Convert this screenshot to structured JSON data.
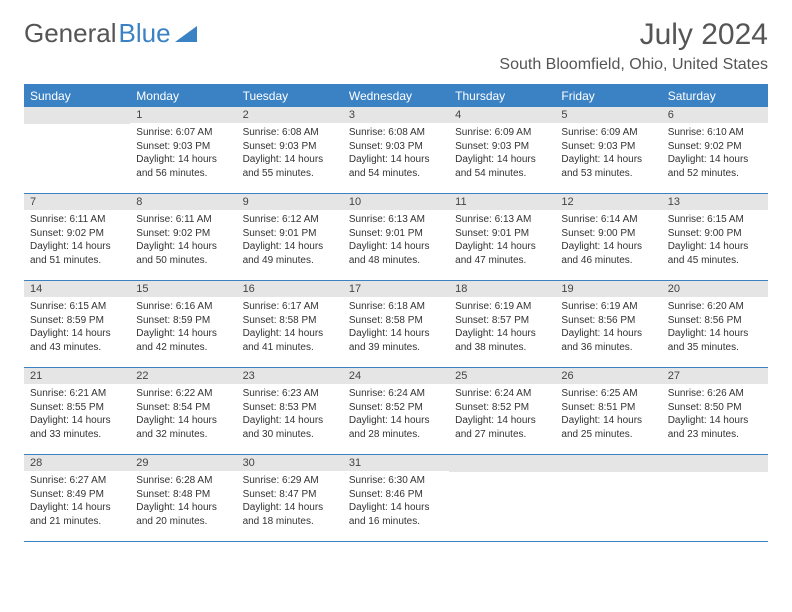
{
  "brand": {
    "part1": "General",
    "part2": "Blue"
  },
  "header": {
    "title": "July 2024",
    "location": "South Bloomfield, Ohio, United States"
  },
  "colors": {
    "accent": "#3b82c4",
    "header_bg": "#3b82c4",
    "header_text": "#ffffff",
    "daynum_bg": "#e5e5e5",
    "text": "#333333",
    "title_text": "#555555"
  },
  "dayNames": [
    "Sunday",
    "Monday",
    "Tuesday",
    "Wednesday",
    "Thursday",
    "Friday",
    "Saturday"
  ],
  "calendar": {
    "type": "table",
    "columns": 7,
    "first_weekday_offset": 1,
    "days": [
      {
        "n": 1,
        "sunrise": "6:07 AM",
        "sunset": "9:03 PM",
        "daylight": "14 hours and 56 minutes."
      },
      {
        "n": 2,
        "sunrise": "6:08 AM",
        "sunset": "9:03 PM",
        "daylight": "14 hours and 55 minutes."
      },
      {
        "n": 3,
        "sunrise": "6:08 AM",
        "sunset": "9:03 PM",
        "daylight": "14 hours and 54 minutes."
      },
      {
        "n": 4,
        "sunrise": "6:09 AM",
        "sunset": "9:03 PM",
        "daylight": "14 hours and 54 minutes."
      },
      {
        "n": 5,
        "sunrise": "6:09 AM",
        "sunset": "9:03 PM",
        "daylight": "14 hours and 53 minutes."
      },
      {
        "n": 6,
        "sunrise": "6:10 AM",
        "sunset": "9:02 PM",
        "daylight": "14 hours and 52 minutes."
      },
      {
        "n": 7,
        "sunrise": "6:11 AM",
        "sunset": "9:02 PM",
        "daylight": "14 hours and 51 minutes."
      },
      {
        "n": 8,
        "sunrise": "6:11 AM",
        "sunset": "9:02 PM",
        "daylight": "14 hours and 50 minutes."
      },
      {
        "n": 9,
        "sunrise": "6:12 AM",
        "sunset": "9:01 PM",
        "daylight": "14 hours and 49 minutes."
      },
      {
        "n": 10,
        "sunrise": "6:13 AM",
        "sunset": "9:01 PM",
        "daylight": "14 hours and 48 minutes."
      },
      {
        "n": 11,
        "sunrise": "6:13 AM",
        "sunset": "9:01 PM",
        "daylight": "14 hours and 47 minutes."
      },
      {
        "n": 12,
        "sunrise": "6:14 AM",
        "sunset": "9:00 PM",
        "daylight": "14 hours and 46 minutes."
      },
      {
        "n": 13,
        "sunrise": "6:15 AM",
        "sunset": "9:00 PM",
        "daylight": "14 hours and 45 minutes."
      },
      {
        "n": 14,
        "sunrise": "6:15 AM",
        "sunset": "8:59 PM",
        "daylight": "14 hours and 43 minutes."
      },
      {
        "n": 15,
        "sunrise": "6:16 AM",
        "sunset": "8:59 PM",
        "daylight": "14 hours and 42 minutes."
      },
      {
        "n": 16,
        "sunrise": "6:17 AM",
        "sunset": "8:58 PM",
        "daylight": "14 hours and 41 minutes."
      },
      {
        "n": 17,
        "sunrise": "6:18 AM",
        "sunset": "8:58 PM",
        "daylight": "14 hours and 39 minutes."
      },
      {
        "n": 18,
        "sunrise": "6:19 AM",
        "sunset": "8:57 PM",
        "daylight": "14 hours and 38 minutes."
      },
      {
        "n": 19,
        "sunrise": "6:19 AM",
        "sunset": "8:56 PM",
        "daylight": "14 hours and 36 minutes."
      },
      {
        "n": 20,
        "sunrise": "6:20 AM",
        "sunset": "8:56 PM",
        "daylight": "14 hours and 35 minutes."
      },
      {
        "n": 21,
        "sunrise": "6:21 AM",
        "sunset": "8:55 PM",
        "daylight": "14 hours and 33 minutes."
      },
      {
        "n": 22,
        "sunrise": "6:22 AM",
        "sunset": "8:54 PM",
        "daylight": "14 hours and 32 minutes."
      },
      {
        "n": 23,
        "sunrise": "6:23 AM",
        "sunset": "8:53 PM",
        "daylight": "14 hours and 30 minutes."
      },
      {
        "n": 24,
        "sunrise": "6:24 AM",
        "sunset": "8:52 PM",
        "daylight": "14 hours and 28 minutes."
      },
      {
        "n": 25,
        "sunrise": "6:24 AM",
        "sunset": "8:52 PM",
        "daylight": "14 hours and 27 minutes."
      },
      {
        "n": 26,
        "sunrise": "6:25 AM",
        "sunset": "8:51 PM",
        "daylight": "14 hours and 25 minutes."
      },
      {
        "n": 27,
        "sunrise": "6:26 AM",
        "sunset": "8:50 PM",
        "daylight": "14 hours and 23 minutes."
      },
      {
        "n": 28,
        "sunrise": "6:27 AM",
        "sunset": "8:49 PM",
        "daylight": "14 hours and 21 minutes."
      },
      {
        "n": 29,
        "sunrise": "6:28 AM",
        "sunset": "8:48 PM",
        "daylight": "14 hours and 20 minutes."
      },
      {
        "n": 30,
        "sunrise": "6:29 AM",
        "sunset": "8:47 PM",
        "daylight": "14 hours and 18 minutes."
      },
      {
        "n": 31,
        "sunrise": "6:30 AM",
        "sunset": "8:46 PM",
        "daylight": "14 hours and 16 minutes."
      }
    ]
  },
  "labels": {
    "sunrise": "Sunrise:",
    "sunset": "Sunset:",
    "daylight": "Daylight:"
  }
}
